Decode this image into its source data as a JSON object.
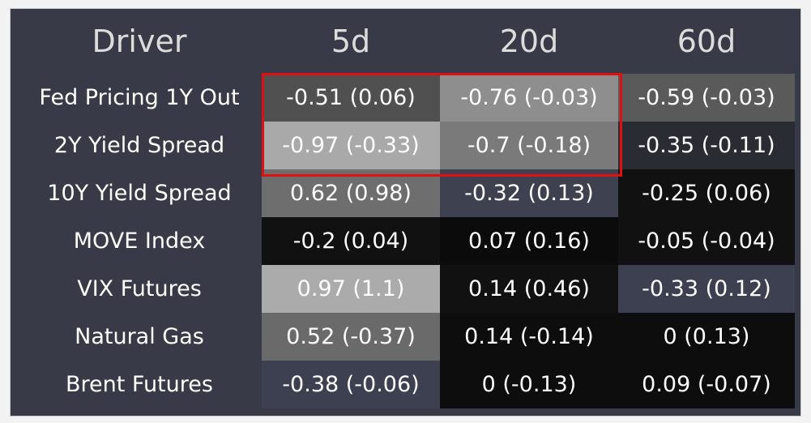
{
  "table": {
    "header": [
      "Driver",
      "5d",
      "20d",
      "60d"
    ],
    "rows": [
      [
        "Fed Pricing 1Y Out",
        "-0.51 (0.06)",
        "-0.76 (-0.03)",
        "-0.59 (-0.03)"
      ],
      [
        "2Y Yield Spread",
        "-0.97 (-0.33)",
        "-0.7 (-0.18)",
        "-0.35 (-0.11)"
      ],
      [
        "10Y Yield Spread",
        "0.62 (0.98)",
        "-0.32 (0.13)",
        "-0.25 (0.06)"
      ],
      [
        "MOVE Index",
        "-0.2 (0.04)",
        "0.07 (0.16)",
        "-0.05 (-0.04)"
      ],
      [
        "VIX Futures",
        "0.97 (1.1)",
        "0.14 (0.46)",
        "-0.33 (0.12)"
      ],
      [
        "Natural Gas",
        "0.52 (-0.37)",
        "0.14 (-0.14)",
        "0 (0.13)"
      ],
      [
        "Brent Futures",
        "-0.38 (-0.06)",
        "0 (-0.13)",
        "0.09 (-0.07)"
      ]
    ]
  }
}
